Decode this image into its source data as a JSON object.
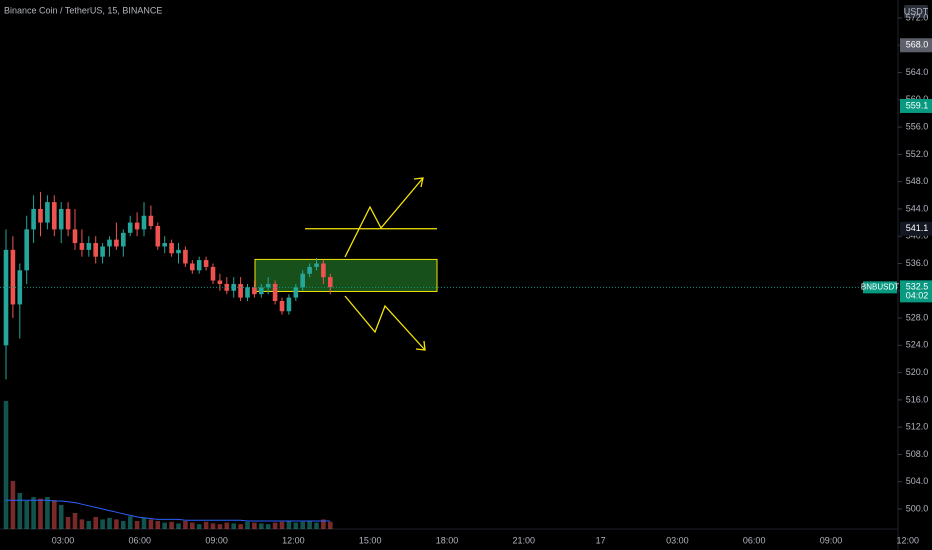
{
  "chart_data": {
    "type": "candlestick",
    "title": "Binance Coin / TetherUS, 15, BINANCE",
    "currency": "USDT",
    "symbol": "BNBUSDT",
    "countdown": "04:02",
    "up_color": "#26a69a",
    "down_color": "#ef5350",
    "open": [
      524,
      538,
      530,
      535,
      541,
      544,
      542,
      545,
      541,
      544,
      541,
      539,
      538,
      539,
      537,
      538.5,
      539.5,
      538.5,
      540.5,
      542,
      541,
      543,
      541.5,
      538.5,
      539,
      537.5,
      538,
      536,
      535,
      536.5,
      535.5,
      533.5,
      533,
      532,
      533,
      531,
      532.5,
      531.5,
      532.5,
      533,
      530.5,
      529,
      531,
      532.5,
      534.5,
      535.5,
      536,
      534
    ],
    "high": [
      541,
      540,
      536,
      543,
      546,
      546.5,
      546,
      546,
      545,
      545,
      544,
      541,
      540,
      540,
      539,
      540,
      542,
      541,
      543,
      543.5,
      545,
      544.5,
      542,
      540,
      539.5,
      539,
      538.5,
      536.5,
      537,
      537,
      536,
      534.5,
      534,
      534,
      534,
      533,
      533.5,
      533,
      534,
      533.5,
      531,
      531.5,
      533,
      535,
      536,
      536.8,
      536.5,
      534.5
    ],
    "low": [
      519,
      528,
      525,
      533,
      539,
      540,
      541,
      540,
      539,
      540,
      538,
      537,
      537,
      536,
      536,
      537,
      538,
      537,
      540,
      540,
      540,
      541,
      538,
      537.5,
      537,
      536,
      535.5,
      534.5,
      534.5,
      535,
      533,
      532,
      531.5,
      531,
      530.5,
      530.5,
      531,
      531,
      531.5,
      530,
      528.5,
      528.5,
      530.5,
      532,
      534,
      535,
      533,
      531.5
    ],
    "close": [
      538,
      530,
      535,
      541,
      544,
      542,
      545,
      541,
      544,
      541,
      539,
      538,
      539,
      537,
      538.5,
      539.5,
      538.5,
      540.5,
      542,
      541,
      543,
      541.5,
      538.5,
      539,
      537.5,
      538,
      536,
      535,
      536.5,
      535.5,
      533.5,
      533,
      532,
      533,
      531,
      532.5,
      531.5,
      532.5,
      533,
      530.5,
      529,
      531,
      532.5,
      534.5,
      535.5,
      536,
      534,
      532.5
    ],
    "volume": [
      160,
      60,
      45,
      35,
      40,
      38,
      40,
      36,
      30,
      15,
      20,
      12,
      10,
      15,
      12,
      14,
      12,
      10,
      16,
      10,
      14,
      12,
      10,
      8,
      9,
      7,
      10,
      8,
      6,
      9,
      7,
      6,
      8,
      7,
      6,
      9,
      8,
      7,
      6,
      8,
      9,
      10,
      8,
      9,
      10,
      8,
      12,
      9
    ],
    "volume_ma": [
      36,
      36,
      36,
      36,
      36,
      36,
      36,
      35,
      35,
      34,
      33,
      31,
      29,
      27,
      25,
      23,
      21,
      19,
      17,
      15,
      14,
      13,
      12,
      12,
      12,
      12,
      11,
      11,
      11,
      11,
      11,
      11,
      11,
      11,
      11,
      10,
      10,
      10,
      10,
      10,
      10,
      10,
      10,
      10,
      10,
      10,
      10,
      10
    ],
    "ylim": [
      500,
      572
    ],
    "yticks": [
      {
        "value": 500,
        "label": "500.0"
      },
      {
        "value": 504,
        "label": "504.0"
      },
      {
        "value": 508,
        "label": "508.0"
      },
      {
        "value": 512,
        "label": "512.0"
      },
      {
        "value": 516,
        "label": "516.0"
      },
      {
        "value": 520,
        "label": "520.0"
      },
      {
        "value": 524,
        "label": "524.0"
      },
      {
        "value": 528,
        "label": "528.0"
      },
      {
        "value": 532,
        "label": "532.0"
      },
      {
        "value": 536,
        "label": "536.0"
      },
      {
        "value": 540,
        "label": "540.0"
      },
      {
        "value": 544,
        "label": "544.0"
      },
      {
        "value": 548,
        "label": "548.0"
      },
      {
        "value": 552,
        "label": "552.0"
      },
      {
        "value": 556,
        "label": "556.0"
      },
      {
        "value": 560,
        "label": "560.0"
      },
      {
        "value": 564,
        "label": "564.0"
      },
      {
        "value": 568,
        "label": "568.0"
      },
      {
        "value": 572,
        "label": "572.0"
      }
    ],
    "vlim": [
      0,
      200
    ],
    "xticks": [
      "03:00",
      "06:00",
      "09:00",
      "12:00",
      "15:00",
      "18:00",
      "21:00",
      "17",
      "03:00",
      "06:00",
      "09:00",
      "12:00"
    ],
    "price_labels": [
      {
        "value": 568,
        "label": "568.0",
        "color": "#5d606b"
      },
      {
        "value": 559.1,
        "label": "559.1",
        "color": "#089981"
      },
      {
        "value": 541.1,
        "label": "541.1",
        "color": "#131722"
      },
      {
        "value": 532.5,
        "label": "532.5",
        "color": "#089981"
      }
    ],
    "zone": {
      "low": 531.9,
      "high": 536.6,
      "color": "#1b5e20"
    },
    "level": 541.1,
    "drawing_color": "#f5e50a",
    "grid": false
  }
}
